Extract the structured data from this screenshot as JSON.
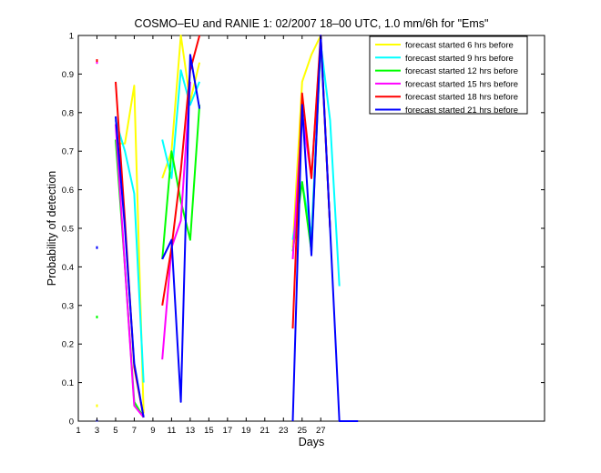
{
  "chart_data": {
    "type": "line",
    "title": "COSMO–EU and RANIE 1: 02/2007 18–00 UTC, 1.0 mm/6h for \"Ems\"",
    "xlabel": "Days",
    "ylabel": "Probability of detection",
    "xlim": [
      1,
      51
    ],
    "ylim": [
      0,
      1
    ],
    "x_ticks": [
      1,
      3,
      5,
      7,
      9,
      11,
      13,
      15,
      17,
      19,
      21,
      23,
      25,
      27
    ],
    "x_tick_labels": [
      "1",
      "3",
      "5",
      "7",
      "9",
      "11",
      "13",
      "15",
      "17",
      "19",
      "21",
      "23",
      "25",
      "27"
    ],
    "y_ticks": [
      0,
      0.1,
      0.2,
      0.3,
      0.4,
      0.5,
      0.6,
      0.7,
      0.8,
      0.9,
      1
    ],
    "y_tick_labels": [
      "0",
      "0.1",
      "0.2",
      "0.3",
      "0.4",
      "0.5",
      "0.6",
      "0.7",
      "0.8",
      "0.9",
      "1"
    ],
    "grid": false,
    "legend_position": "top-right",
    "series": [
      {
        "name": "forecast started 6 hrs before",
        "color": "#ffff00",
        "markers": [
          [
            3,
            0.04
          ]
        ],
        "segments": [
          [
            [
              5,
              0.72
            ],
            [
              6,
              0.72
            ],
            [
              7,
              0.87
            ],
            [
              8,
              0.02
            ]
          ],
          [
            [
              10,
              0.63
            ],
            [
              11,
              0.7
            ],
            [
              12,
              1.0
            ],
            [
              13,
              0.83
            ],
            [
              14,
              0.93
            ]
          ],
          [
            [
              24,
              0.45
            ],
            [
              25,
              0.88
            ],
            [
              26,
              0.95
            ],
            [
              27,
              1.0
            ],
            [
              28,
              0.5
            ]
          ]
        ]
      },
      {
        "name": "forecast started 9 hrs before",
        "color": "#00ffff",
        "markers": [],
        "segments": [
          [
            [
              5,
              0.78
            ],
            [
              6,
              0.7
            ],
            [
              7,
              0.59
            ],
            [
              8,
              0.1
            ]
          ],
          [
            [
              10,
              0.73
            ],
            [
              11,
              0.63
            ],
            [
              12,
              0.91
            ],
            [
              13,
              0.82
            ],
            [
              14,
              0.88
            ]
          ],
          [
            [
              24,
              0.47
            ],
            [
              25,
              0.62
            ],
            [
              26,
              0.48
            ],
            [
              27,
              0.98
            ],
            [
              28,
              0.78
            ],
            [
              29,
              0.35
            ]
          ]
        ]
      },
      {
        "name": "forecast started 12 hrs before",
        "color": "#00ff00",
        "markers": [
          [
            3,
            0.27
          ]
        ],
        "segments": [
          [
            [
              5,
              0.73
            ],
            [
              6,
              0.4
            ],
            [
              7,
              0.05
            ],
            [
              8,
              0.01
            ]
          ],
          [
            [
              10,
              0.42
            ],
            [
              11,
              0.7
            ],
            [
              12,
              0.57
            ],
            [
              13,
              0.47
            ],
            [
              14,
              0.82
            ]
          ],
          [
            [
              24,
              0.44
            ],
            [
              25,
              0.62
            ],
            [
              26,
              0.44
            ],
            [
              27,
              0.99
            ],
            [
              28,
              0.5
            ]
          ]
        ]
      },
      {
        "name": "forecast started 15 hrs before",
        "color": "#ff00ff",
        "markers": [
          [
            3,
            0.93
          ]
        ],
        "segments": [
          [
            [
              5,
              0.77
            ],
            [
              6,
              0.4
            ],
            [
              7,
              0.04
            ],
            [
              8,
              0.01
            ]
          ],
          [
            [
              10,
              0.16
            ],
            [
              11,
              0.45
            ],
            [
              12,
              0.52
            ],
            [
              13,
              0.88
            ]
          ],
          [
            [
              24,
              0.42
            ],
            [
              25,
              0.8
            ],
            [
              26,
              0.63
            ],
            [
              27,
              0.99
            ],
            [
              28,
              0.5
            ]
          ]
        ]
      },
      {
        "name": "forecast started 18 hrs before",
        "color": "#ff0000",
        "markers": [
          [
            3,
            0.935
          ]
        ],
        "segments": [
          [
            [
              5,
              0.88
            ],
            [
              6,
              0.52
            ],
            [
              7,
              0.14
            ],
            [
              8,
              0.01
            ]
          ],
          [
            [
              10,
              0.3
            ],
            [
              11,
              0.45
            ],
            [
              12,
              0.65
            ],
            [
              13,
              0.91
            ],
            [
              14,
              1.0
            ]
          ],
          [
            [
              24,
              0.24
            ],
            [
              25,
              0.85
            ],
            [
              26,
              0.63
            ],
            [
              27,
              1.0
            ],
            [
              28,
              0.5
            ]
          ]
        ]
      },
      {
        "name": "forecast started 21 hrs before",
        "color": "#0000ff",
        "markers": [
          [
            3,
            0.45
          ]
        ],
        "segments": [
          [
            [
              3,
              0.0
            ]
          ],
          [
            [
              5,
              0.79
            ],
            [
              6,
              0.5
            ],
            [
              7,
              0.15
            ],
            [
              8,
              0.01
            ]
          ],
          [
            [
              10,
              0.42
            ],
            [
              11,
              0.47
            ],
            [
              12,
              0.05
            ],
            [
              13,
              0.95
            ],
            [
              14,
              0.81
            ]
          ],
          [
            [
              24,
              0.0
            ],
            [
              25,
              0.82
            ],
            [
              26,
              0.43
            ],
            [
              27,
              1.0
            ],
            [
              28,
              0.5
            ],
            [
              29,
              0.0
            ],
            [
              31,
              0.0
            ]
          ]
        ]
      }
    ]
  }
}
